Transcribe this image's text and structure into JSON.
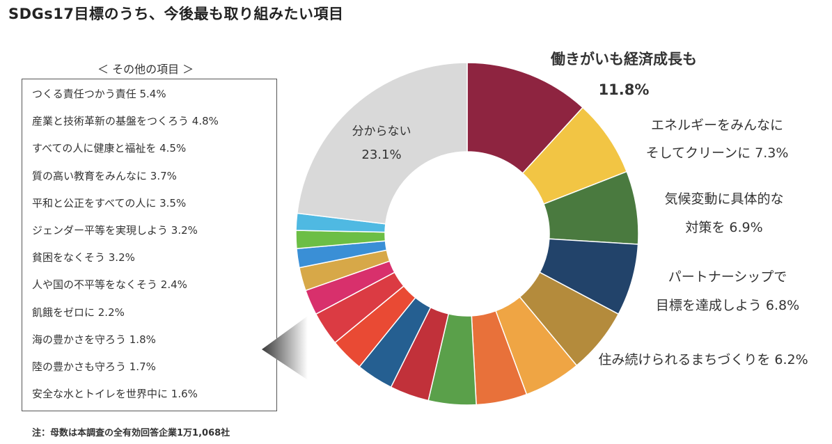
{
  "title": "SDGs17目標のうち、今後最も取り組みたい項目",
  "other_heading": "＜ その他の項目 ＞",
  "note": "注：母数は本調査の全有効回答企業1万1,068社",
  "chart_data": {
    "type": "pie",
    "variant": "donut",
    "unit": "%",
    "slices": [
      {
        "label": "働きがいも経済成長も",
        "value": 11.8,
        "color": "#8e2440"
      },
      {
        "label": "エネルギーをみんなにそしてクリーンに",
        "value": 7.3,
        "color": "#f2c544"
      },
      {
        "label": "気候変動に具体的な対策を",
        "value": 6.9,
        "color": "#4a7a3f"
      },
      {
        "label": "パートナーシップで目標を達成しよう",
        "value": 6.8,
        "color": "#22436a"
      },
      {
        "label": "住み続けられるまちづくりを",
        "value": 6.2,
        "color": "#b48b3c"
      },
      {
        "label": "つくる責任つかう責任",
        "value": 5.4,
        "color": "#efa544"
      },
      {
        "label": "産業と技術革新の基盤をつくろう",
        "value": 4.8,
        "color": "#e8713a"
      },
      {
        "label": "すべての人に健康と福祉を",
        "value": 4.5,
        "color": "#5aa04a"
      },
      {
        "label": "質の高い教育をみんなに",
        "value": 3.7,
        "color": "#c1313a"
      },
      {
        "label": "平和と公正をすべての人に",
        "value": 3.5,
        "color": "#255f91"
      },
      {
        "label": "ジェンダー平等を実現しよう",
        "value": 3.2,
        "color": "#e94a34"
      },
      {
        "label": "貧困をなくそう",
        "value": 3.2,
        "color": "#db3b43"
      },
      {
        "label": "人や国の不平等をなくそう",
        "value": 2.4,
        "color": "#d8306c"
      },
      {
        "label": "飢餓をゼロに",
        "value": 2.2,
        "color": "#d7a848"
      },
      {
        "label": "海の豊かさを守ろう",
        "value": 1.8,
        "color": "#3a8fd6"
      },
      {
        "label": "陸の豊かさも守ろう",
        "value": 1.7,
        "color": "#6cbe45"
      },
      {
        "label": "安全な水とトイレを世界中に",
        "value": 1.6,
        "color": "#4fb9e2"
      },
      {
        "label": "分からない",
        "value": 23.1,
        "color": "#d9d9d9"
      }
    ],
    "outside_labels": [
      {
        "lines": [
          "働きがいも経済成長も",
          "11.8%"
        ],
        "highlight": true,
        "color": "#e8312a"
      },
      {
        "lines": [
          "エネルギーをみんなに",
          "そしてクリーンに  7.3%"
        ]
      },
      {
        "lines": [
          "気候変動に具体的な",
          "対策を  6.9%"
        ]
      },
      {
        "lines": [
          "パートナーシップで",
          "目標を達成しよう  6.8%"
        ]
      },
      {
        "lines": [
          "住み続けられるまちづくりを  6.2%"
        ]
      }
    ],
    "inside_label": {
      "lines": [
        "分からない",
        "23.1%"
      ]
    },
    "others_list": [
      "つくる責任つかう責任  5.4%",
      "産業と技術革新の基盤をつくろう  4.8%",
      "すべての人に健康と福祉を  4.5%",
      "質の高い教育をみんなに  3.7%",
      "平和と公正をすべての人に  3.5%",
      "ジェンダー平等を実現しよう  3.2%",
      "貧困をなくそう  3.2%",
      "人や国の不平等をなくそう  2.4%",
      "飢餓をゼロに  2.2%",
      "海の豊かさを守ろう  1.8%",
      "陸の豊かさも守ろう  1.7%",
      "安全な水とトイレを世界中に  1.6%"
    ]
  }
}
